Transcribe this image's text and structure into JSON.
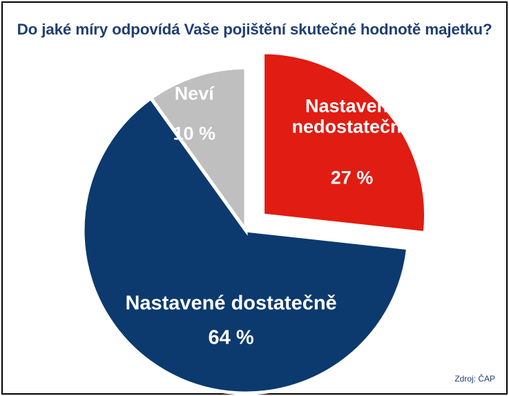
{
  "chart_data": {
    "type": "pie",
    "title": "Do jaké míry odpovídá Vaše pojištění skutečné hodnotě majetku?",
    "slices": [
      {
        "name": "Nastavené nedostatečně",
        "label_lines": [
          "Nastavené",
          "nedostatečně"
        ],
        "value": 27,
        "value_label": "27 %",
        "color": "#e11c12",
        "exploded": true
      },
      {
        "name": "Nastavené dostatečně",
        "label_lines": [
          "Nastavené dostatečně"
        ],
        "value": 64,
        "value_label": "64 %",
        "color": "#0c3a6e",
        "exploded": false
      },
      {
        "name": "Neví",
        "label_lines": [
          "Neví"
        ],
        "value": 10,
        "value_label": "10 %",
        "color": "#bfbfbf",
        "exploded": false
      }
    ]
  },
  "source": "Zdroj: ČAP",
  "colors": {
    "title": "#1f3f73",
    "label_text": "#ffffff"
  }
}
